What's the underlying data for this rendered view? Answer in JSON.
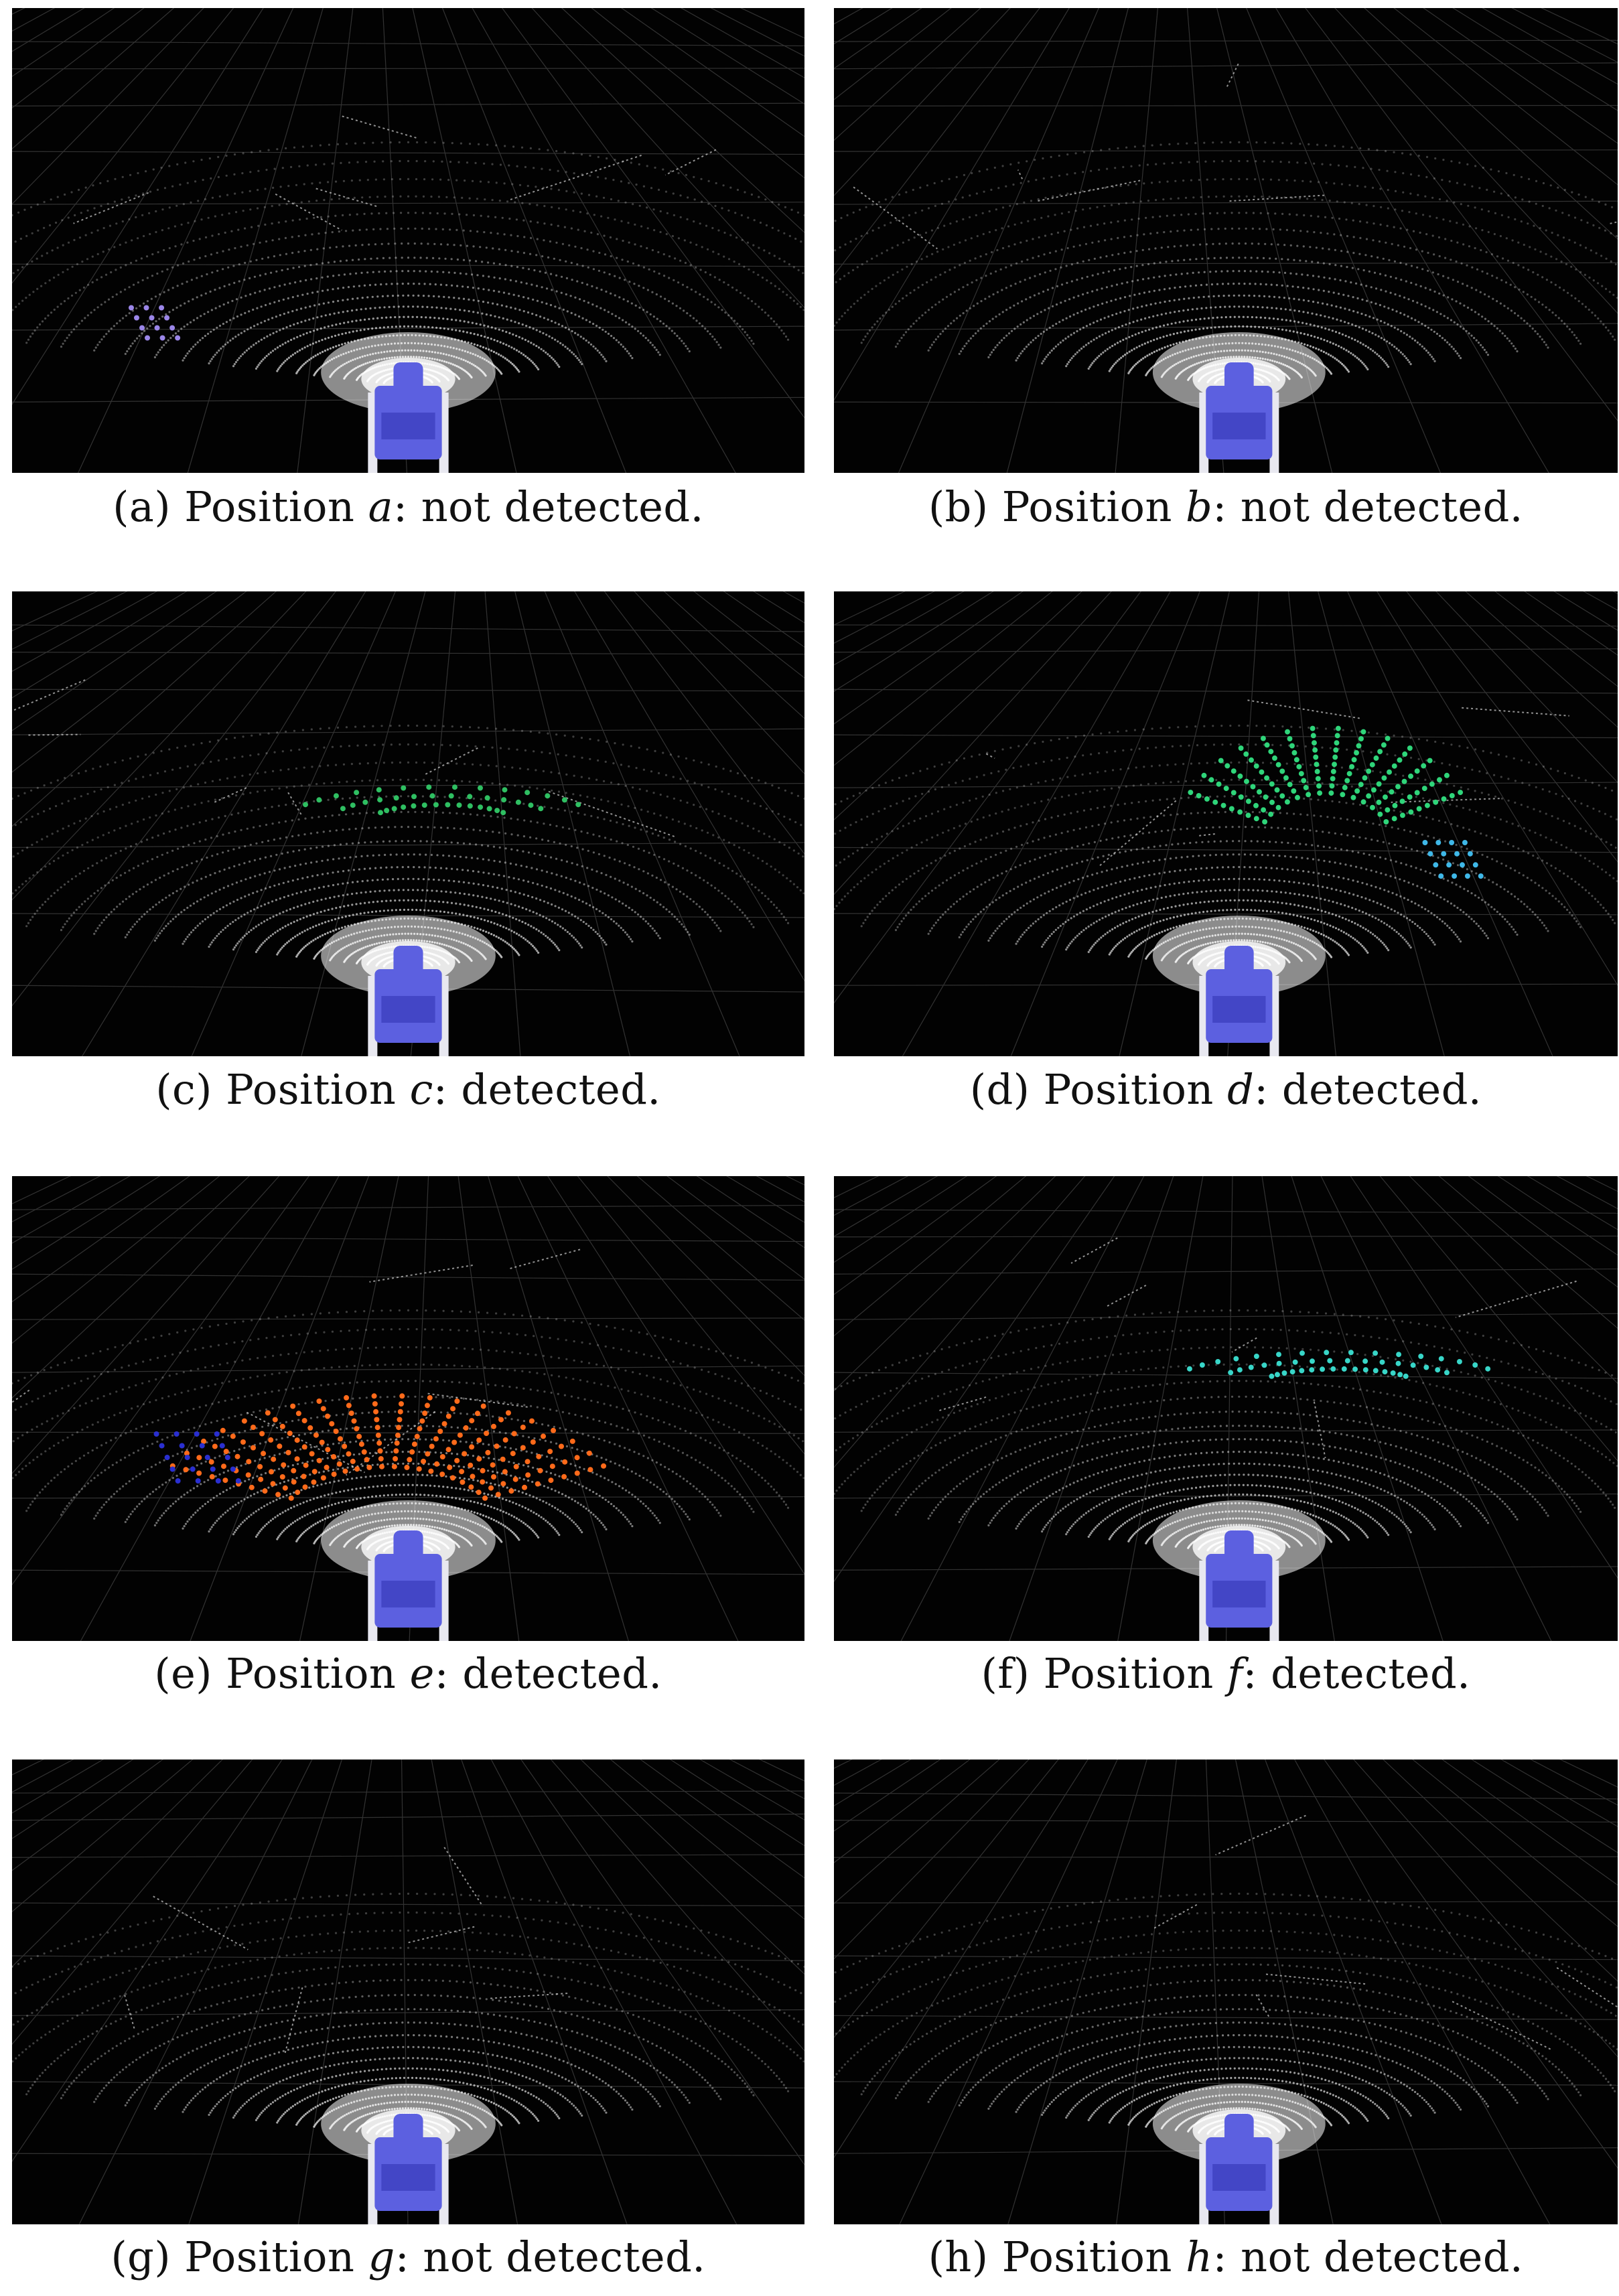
{
  "figure": {
    "panels": [
      {
        "label": "(a) Position",
        "var": "a",
        "status": ": not detected.",
        "detected": false,
        "cluster_colors": [
          "#9b86e8"
        ]
      },
      {
        "label": "(b) Position",
        "var": "b",
        "status": ": not detected.",
        "detected": false,
        "cluster_colors": []
      },
      {
        "label": "(c) Position",
        "var": "c",
        "status": ": detected.",
        "detected": true,
        "cluster_colors": [
          "#2fbf62"
        ]
      },
      {
        "label": "(d) Position",
        "var": "d",
        "status": ": detected.",
        "detected": true,
        "cluster_colors": [
          "#2fd57a",
          "#3fb8e8"
        ]
      },
      {
        "label": "(e) Position",
        "var": "e",
        "status": ": detected.",
        "detected": true,
        "cluster_colors": [
          "#ff6a1a",
          "#2a2fd0"
        ]
      },
      {
        "label": "(f) Position",
        "var": "f",
        "status": ": detected.",
        "detected": true,
        "cluster_colors": [
          "#38d6c8"
        ]
      },
      {
        "label": "(g) Position",
        "var": "g",
        "status": ": not detected.",
        "detected": false,
        "cluster_colors": []
      },
      {
        "label": "(h) Position",
        "var": "h",
        "status": ": not detected.",
        "detected": false,
        "cluster_colors": []
      }
    ],
    "colors": {
      "background": "#020202",
      "grid": "#5a5a5a",
      "points": "#f2f2f2",
      "robot_body": "#5c60e0",
      "robot_frame": "#e8e8f0"
    }
  }
}
